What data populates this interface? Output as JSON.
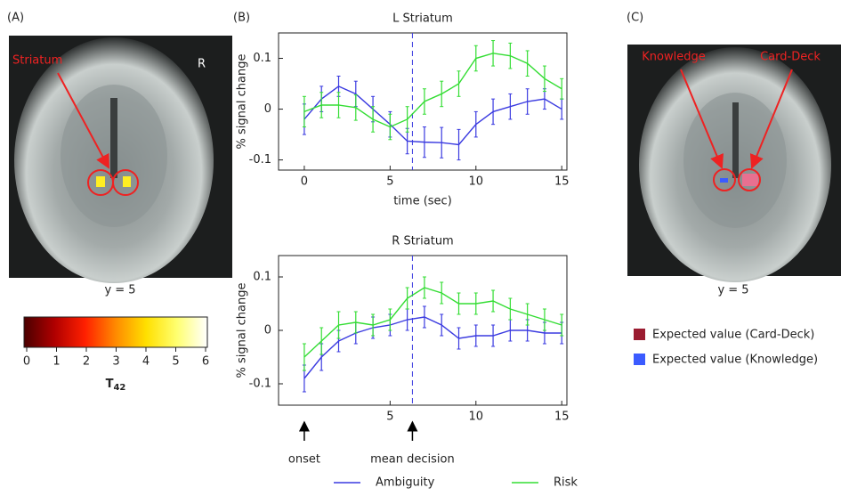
{
  "panel_a": {
    "label": "(A)",
    "annotation": "Striatum",
    "orientation": "R",
    "slice": "y = 5",
    "colorbar": {
      "lim": [
        0,
        6
      ],
      "ticks": [
        0,
        1,
        2,
        3,
        4,
        5,
        6
      ],
      "label": "T",
      "label_sub": "42",
      "colors": [
        "#4a0000",
        "#b00000",
        "#ff2000",
        "#ff8a00",
        "#ffe000",
        "#ffff70",
        "#ffffff"
      ]
    }
  },
  "panel_b": {
    "label": "(B)"
  },
  "panel_c": {
    "label": "(C)",
    "annotations": [
      "Knowledge",
      "Card-Deck"
    ],
    "slice": "y = 5",
    "legend": [
      {
        "name": "Expected value (Card-Deck)",
        "color": "#9b1c31"
      },
      {
        "name": "Expected value (Knowledge)",
        "color": "#3b5bff"
      }
    ]
  },
  "chart_data": [
    {
      "type": "line",
      "title": "L Striatum",
      "xlabel": "time (sec)",
      "ylabel": "% signal change",
      "x": [
        0,
        1,
        2,
        3,
        4,
        5,
        6,
        7,
        8,
        9,
        10,
        11,
        12,
        13,
        14,
        15
      ],
      "xlim": [
        -1.5,
        15.3
      ],
      "ylim": [
        -0.12,
        0.15
      ],
      "xticks": [
        0,
        5,
        10,
        15
      ],
      "yticks": [
        -0.1,
        0,
        0.1
      ],
      "vline": 6.3,
      "series": [
        {
          "name": "Ambiguity",
          "color": "#3a3ae0",
          "values": [
            -0.02,
            0.02,
            0.045,
            0.03,
            0,
            -0.03,
            -0.063,
            -0.065,
            -0.066,
            -0.07,
            -0.03,
            -0.005,
            0.005,
            0.015,
            0.02,
            0
          ],
          "errors": [
            0.03,
            0.025,
            0.02,
            0.025,
            0.025,
            0.025,
            0.025,
            0.03,
            0.03,
            0.03,
            0.025,
            0.025,
            0.025,
            0.025,
            0.02,
            0.02
          ]
        },
        {
          "name": "Risk",
          "color": "#33dd33",
          "values": [
            -0.005,
            0.008,
            0.008,
            0.003,
            -0.02,
            -0.035,
            -0.02,
            0.015,
            0.03,
            0.05,
            0.1,
            0.11,
            0.105,
            0.09,
            0.06,
            0.04
          ],
          "errors": [
            0.03,
            0.025,
            0.025,
            0.025,
            0.025,
            0.025,
            0.025,
            0.025,
            0.025,
            0.025,
            0.025,
            0.025,
            0.025,
            0.025,
            0.025,
            0.02
          ]
        }
      ]
    },
    {
      "type": "line",
      "title": "R Striatum",
      "ylabel": "% signal change",
      "x": [
        0,
        1,
        2,
        3,
        4,
        5,
        6,
        7,
        8,
        9,
        10,
        11,
        12,
        13,
        14,
        15
      ],
      "xlim": [
        -1.5,
        15.3
      ],
      "ylim": [
        -0.14,
        0.14
      ],
      "xticks": [
        5,
        10,
        15
      ],
      "yticks": [
        -0.1,
        0,
        0.1
      ],
      "vline": 6.3,
      "annotations": [
        {
          "text": "onset",
          "x": 0
        },
        {
          "text": "mean decision",
          "x": 6.3
        }
      ],
      "series": [
        {
          "color": "#3a3ae0",
          "values": [
            -0.09,
            -0.05,
            -0.02,
            -0.005,
            0.005,
            0.01,
            0.02,
            0.025,
            0.01,
            -0.015,
            -0.01,
            -0.01,
            0,
            0,
            -0.005,
            -0.005
          ],
          "errors": [
            0.025,
            0.025,
            0.02,
            0.02,
            0.02,
            0.02,
            0.02,
            0.02,
            0.02,
            0.02,
            0.02,
            0.02,
            0.02,
            0.02,
            0.02,
            0.02
          ]
        },
        {
          "color": "#33dd33",
          "values": [
            -0.05,
            -0.02,
            0.01,
            0.015,
            0.01,
            0.02,
            0.06,
            0.08,
            0.07,
            0.05,
            0.05,
            0.055,
            0.04,
            0.03,
            0.02,
            0.01
          ],
          "errors": [
            0.025,
            0.025,
            0.025,
            0.02,
            0.02,
            0.02,
            0.02,
            0.02,
            0.02,
            0.02,
            0.02,
            0.02,
            0.02,
            0.02,
            0.02,
            0.02
          ]
        }
      ]
    }
  ]
}
